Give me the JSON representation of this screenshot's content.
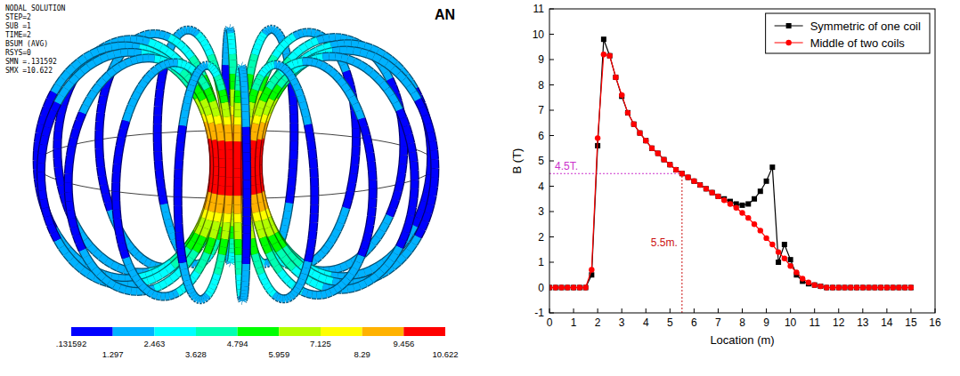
{
  "chart_data": {
    "type": "line",
    "x_label": "Location (m)",
    "y_label": "B (T)",
    "x": [
      0,
      0.25,
      0.5,
      0.75,
      1,
      1.25,
      1.5,
      1.75,
      2,
      2.25,
      2.5,
      2.75,
      3,
      3.25,
      3.5,
      3.75,
      4,
      4.25,
      4.5,
      4.75,
      5,
      5.25,
      5.5,
      5.75,
      6,
      6.25,
      6.5,
      6.75,
      7,
      7.25,
      7.5,
      7.75,
      8,
      8.25,
      8.5,
      8.75,
      9,
      9.25,
      9.5,
      9.75,
      10,
      10.25,
      10.5,
      10.75,
      11,
      11.25,
      11.5,
      11.75,
      12,
      12.25,
      12.5,
      12.75,
      13,
      13.25,
      13.5,
      13.75,
      14,
      14.25,
      14.5,
      14.75,
      15
    ],
    "series": [
      {
        "name": "Symmetric of one coil",
        "color": "#000000",
        "marker": "square",
        "line_style": "solid",
        "values": [
          0,
          0,
          0,
          0,
          0,
          0,
          0,
          0.5,
          5.6,
          9.8,
          9.15,
          8.3,
          7.55,
          6.9,
          6.45,
          6.1,
          5.8,
          5.5,
          5.3,
          5.05,
          4.85,
          4.65,
          4.5,
          4.35,
          4.2,
          4.05,
          3.9,
          3.75,
          3.6,
          3.5,
          3.4,
          3.3,
          3.25,
          3.3,
          3.5,
          3.8,
          4.2,
          4.75,
          1.0,
          1.7,
          1.1,
          0.5,
          0.25,
          0.15,
          0.1,
          0.05,
          0,
          0,
          0,
          0,
          0,
          0,
          0,
          0,
          0,
          0,
          0,
          0,
          0,
          0,
          0
        ]
      },
      {
        "name": "Middle of two coils",
        "color": "#ff0000",
        "marker": "circle",
        "line_style": "solid",
        "values": [
          0,
          0,
          0,
          0,
          0,
          0,
          0,
          0.7,
          5.9,
          9.2,
          9.15,
          8.3,
          7.6,
          6.9,
          6.45,
          6.1,
          5.8,
          5.5,
          5.3,
          5.05,
          4.85,
          4.65,
          4.5,
          4.35,
          4.2,
          4.05,
          3.9,
          3.75,
          3.6,
          3.45,
          3.3,
          3.15,
          2.95,
          2.75,
          2.5,
          2.25,
          1.95,
          1.7,
          1.4,
          1.15,
          0.85,
          0.6,
          0.35,
          0.2,
          0.1,
          0.05,
          0,
          0,
          0,
          0,
          0,
          0,
          0,
          0,
          0,
          0,
          0,
          0,
          0,
          0,
          0
        ]
      }
    ],
    "xlim": [
      0,
      16
    ],
    "xticks": [
      0,
      1,
      2,
      3,
      4,
      5,
      6,
      7,
      8,
      9,
      10,
      11,
      12,
      13,
      14,
      15,
      16
    ],
    "ylim": [
      -1,
      11
    ],
    "yticks": [
      -1,
      0,
      1,
      2,
      3,
      4,
      5,
      6,
      7,
      8,
      9,
      10,
      11
    ],
    "grid": false,
    "legend": "upper right",
    "annotations": [
      {
        "text": "4.5T.",
        "x": 5.5,
        "y": 4.5,
        "color": "#cc33cc",
        "orientation": "horizontal",
        "line_style": "dotted"
      },
      {
        "text": "5.5m.",
        "x": 5.5,
        "y": 4.5,
        "color": "#cc1111",
        "orientation": "vertical",
        "line_style": "dotted"
      }
    ]
  },
  "render": {
    "header_lines": [
      "NODAL SOLUTION",
      "STEP=2",
      "SUB =1",
      "TIME=2",
      "BSUM   (AVG)",
      "RSYS=0",
      "SMN =.131592",
      "SMX =10.622"
    ],
    "logo": "AN",
    "colorbar": {
      "ticks": [
        {
          "value": 0.131592,
          "label": ".131592"
        },
        1.297,
        2.463,
        3.628,
        4.794,
        5.959,
        7.125,
        8.29,
        9.456,
        10.622
      ],
      "colors": [
        "#0000ff",
        "#00b2ff",
        "#00ffff",
        "#00ffb2",
        "#00ff00",
        "#b2ff00",
        "#ffff00",
        "#ffb200",
        "#ff0000"
      ]
    }
  }
}
